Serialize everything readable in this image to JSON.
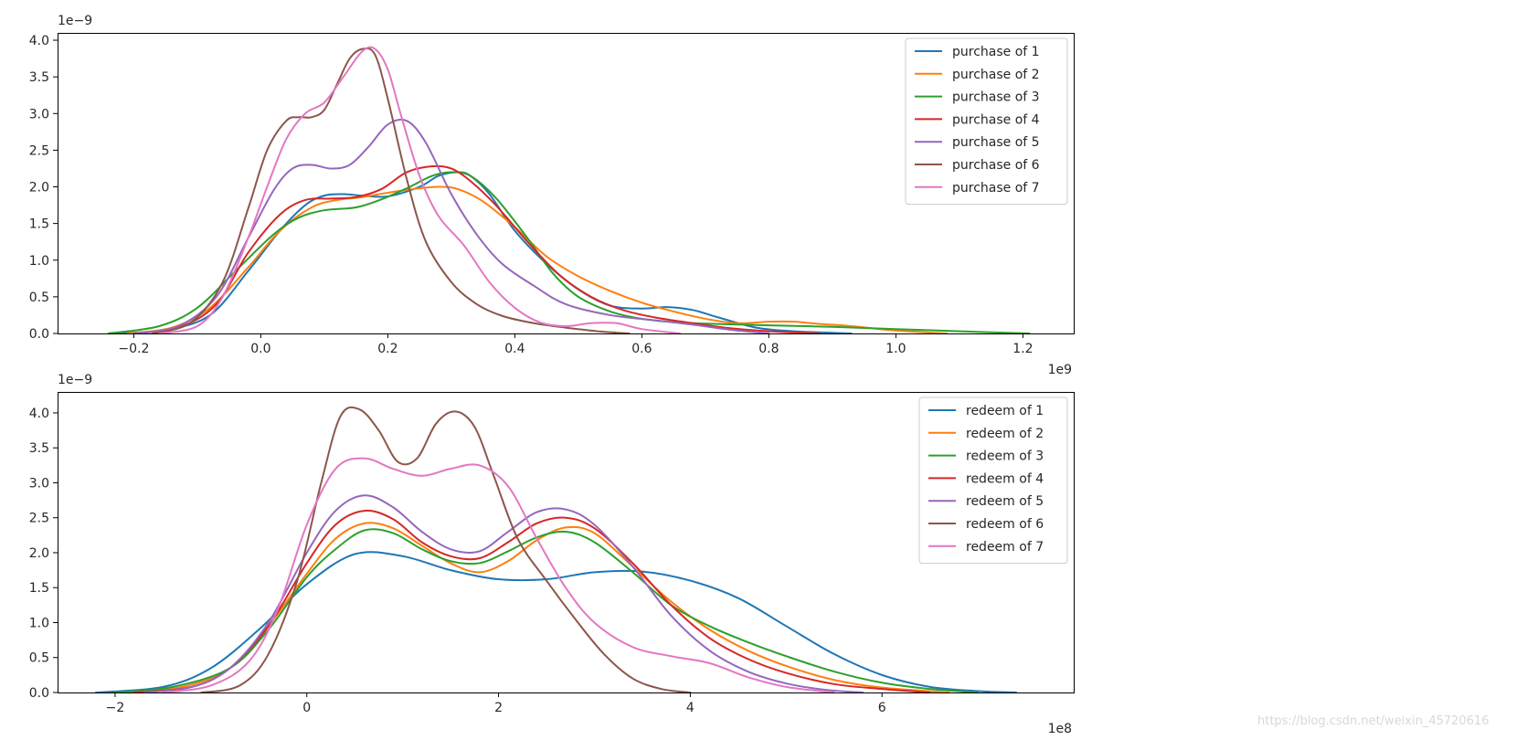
{
  "chart_data": [
    {
      "type": "line",
      "subtype": "kde",
      "title": "",
      "xlabel": "",
      "ylabel": "",
      "x_offset_label": "1e9",
      "y_offset_label": "1e−9",
      "xlim": [
        -0.32,
        1.28
      ],
      "ylim": [
        0,
        4.1
      ],
      "xticks": [
        -0.2,
        0.0,
        0.2,
        0.4,
        0.6,
        0.8,
        1.0,
        1.2
      ],
      "xtick_labels": [
        "−0.2",
        "0.0",
        "0.2",
        "0.4",
        "0.6",
        "0.8",
        "1.0",
        "1.2"
      ],
      "yticks": [
        0.0,
        0.5,
        1.0,
        1.5,
        2.0,
        2.5,
        3.0,
        3.5,
        4.0
      ],
      "ytick_labels": [
        "0.0",
        "0.5",
        "1.0",
        "1.5",
        "2.0",
        "2.5",
        "3.0",
        "3.5",
        "4.0"
      ],
      "grid": false,
      "legend_position": "top-right",
      "series": [
        {
          "name": "purchase of 1",
          "color": "#1f77b4",
          "x": [
            -0.23,
            -0.15,
            -0.08,
            -0.02,
            0.03,
            0.07,
            0.1,
            0.13,
            0.16,
            0.2,
            0.25,
            0.28,
            0.31,
            0.33,
            0.36,
            0.4,
            0.45,
            0.5,
            0.55,
            0.6,
            0.64,
            0.68,
            0.72,
            0.78,
            0.84,
            0.93
          ],
          "y": [
            0,
            0.05,
            0.25,
            0.85,
            1.4,
            1.75,
            1.88,
            1.9,
            1.88,
            1.87,
            2.0,
            2.15,
            2.2,
            2.15,
            1.9,
            1.4,
            0.95,
            0.6,
            0.38,
            0.34,
            0.36,
            0.32,
            0.22,
            0.08,
            0.03,
            0
          ]
        },
        {
          "name": "purchase of 2",
          "color": "#ff7f0e",
          "x": [
            -0.21,
            -0.14,
            -0.08,
            -0.02,
            0.03,
            0.08,
            0.12,
            0.16,
            0.2,
            0.25,
            0.28,
            0.31,
            0.35,
            0.4,
            0.45,
            0.5,
            0.55,
            0.6,
            0.65,
            0.7,
            0.75,
            0.8,
            0.84,
            0.88,
            0.93,
            1.0,
            1.08
          ],
          "y": [
            0,
            0.08,
            0.35,
            0.9,
            1.4,
            1.72,
            1.82,
            1.86,
            1.92,
            1.98,
            2.0,
            1.97,
            1.8,
            1.45,
            1.05,
            0.78,
            0.58,
            0.42,
            0.3,
            0.2,
            0.14,
            0.16,
            0.16,
            0.13,
            0.1,
            0.04,
            0
          ]
        },
        {
          "name": "purchase of 3",
          "color": "#2ca02c",
          "x": [
            -0.24,
            -0.16,
            -0.1,
            -0.04,
            0.02,
            0.06,
            0.1,
            0.15,
            0.19,
            0.23,
            0.27,
            0.3,
            0.33,
            0.37,
            0.42,
            0.46,
            0.5,
            0.55,
            0.6,
            0.66,
            0.72,
            0.8,
            0.9,
            1.0,
            1.1,
            1.21
          ],
          "y": [
            0,
            0.1,
            0.35,
            0.85,
            1.35,
            1.58,
            1.68,
            1.72,
            1.83,
            1.98,
            2.15,
            2.2,
            2.15,
            1.85,
            1.3,
            0.82,
            0.5,
            0.3,
            0.2,
            0.15,
            0.13,
            0.11,
            0.09,
            0.06,
            0.03,
            0
          ]
        },
        {
          "name": "purchase of 4",
          "color": "#d62728",
          "x": [
            -0.2,
            -0.13,
            -0.07,
            -0.02,
            0.03,
            0.07,
            0.11,
            0.15,
            0.19,
            0.23,
            0.27,
            0.3,
            0.33,
            0.37,
            0.42,
            0.47,
            0.52,
            0.57,
            0.62,
            0.68,
            0.73,
            0.8,
            0.88
          ],
          "y": [
            0,
            0.08,
            0.4,
            1.1,
            1.62,
            1.82,
            1.84,
            1.86,
            1.97,
            2.2,
            2.28,
            2.25,
            2.08,
            1.75,
            1.25,
            0.8,
            0.5,
            0.32,
            0.22,
            0.14,
            0.08,
            0.03,
            0
          ]
        },
        {
          "name": "purchase of 5",
          "color": "#9467bd",
          "x": [
            -0.2,
            -0.13,
            -0.07,
            -0.02,
            0.02,
            0.05,
            0.08,
            0.11,
            0.14,
            0.17,
            0.2,
            0.23,
            0.26,
            0.3,
            0.34,
            0.38,
            0.43,
            0.48,
            0.55,
            0.62,
            0.68,
            0.74,
            0.8
          ],
          "y": [
            0,
            0.1,
            0.5,
            1.3,
            1.95,
            2.25,
            2.3,
            2.25,
            2.3,
            2.55,
            2.85,
            2.9,
            2.6,
            1.9,
            1.35,
            0.95,
            0.65,
            0.4,
            0.25,
            0.18,
            0.12,
            0.05,
            0
          ]
        },
        {
          "name": "purchase of 6",
          "color": "#8c564b",
          "x": [
            -0.17,
            -0.11,
            -0.06,
            -0.02,
            0.01,
            0.04,
            0.06,
            0.08,
            0.1,
            0.12,
            0.14,
            0.16,
            0.18,
            0.2,
            0.23,
            0.26,
            0.3,
            0.34,
            0.38,
            0.43,
            0.48,
            0.53,
            0.58
          ],
          "y": [
            0,
            0.15,
            0.7,
            1.7,
            2.5,
            2.9,
            2.95,
            2.95,
            3.05,
            3.4,
            3.75,
            3.88,
            3.8,
            3.2,
            2.1,
            1.25,
            0.7,
            0.4,
            0.24,
            0.14,
            0.08,
            0.03,
            0
          ]
        },
        {
          "name": "purchase of 7",
          "color": "#e377c2",
          "x": [
            -0.16,
            -0.1,
            -0.06,
            -0.02,
            0.01,
            0.04,
            0.07,
            0.1,
            0.13,
            0.16,
            0.18,
            0.2,
            0.22,
            0.25,
            0.28,
            0.32,
            0.36,
            0.4,
            0.44,
            0.48,
            0.52,
            0.56,
            0.6,
            0.66
          ],
          "y": [
            0,
            0.1,
            0.5,
            1.3,
            2.0,
            2.65,
            3.0,
            3.15,
            3.5,
            3.85,
            3.88,
            3.6,
            3.0,
            2.15,
            1.6,
            1.2,
            0.7,
            0.35,
            0.15,
            0.1,
            0.14,
            0.14,
            0.06,
            0
          ]
        }
      ]
    },
    {
      "type": "line",
      "subtype": "kde",
      "title": "",
      "xlabel": "",
      "ylabel": "",
      "x_offset_label": "1e8",
      "y_offset_label": "1e−9",
      "xlim": [
        -2.6,
        8.0
      ],
      "ylim": [
        0,
        4.3
      ],
      "xticks": [
        -2,
        0,
        2,
        4,
        6
      ],
      "xtick_labels": [
        "−2",
        "0",
        "2",
        "4",
        "6"
      ],
      "yticks": [
        0.0,
        0.5,
        1.0,
        1.5,
        2.0,
        2.5,
        3.0,
        3.5,
        4.0
      ],
      "ytick_labels": [
        "0.0",
        "0.5",
        "1.0",
        "1.5",
        "2.0",
        "2.5",
        "3.0",
        "3.5",
        "4.0"
      ],
      "grid": false,
      "legend_position": "top-right",
      "series": [
        {
          "name": "redeem of 1",
          "color": "#1f77b4",
          "x": [
            -2.2,
            -1.5,
            -1.0,
            -0.5,
            0.0,
            0.5,
            1.0,
            1.5,
            2.0,
            2.5,
            3.0,
            3.5,
            4.0,
            4.5,
            5.0,
            5.5,
            6.0,
            6.5,
            7.0,
            7.4
          ],
          "y": [
            0,
            0.08,
            0.35,
            0.9,
            1.55,
            1.98,
            1.95,
            1.75,
            1.62,
            1.62,
            1.72,
            1.73,
            1.6,
            1.35,
            0.95,
            0.55,
            0.25,
            0.08,
            0.02,
            0
          ]
        },
        {
          "name": "redeem of 2",
          "color": "#ff7f0e",
          "x": [
            -1.9,
            -1.3,
            -0.8,
            -0.4,
            0.0,
            0.3,
            0.6,
            0.9,
            1.2,
            1.5,
            1.8,
            2.1,
            2.4,
            2.7,
            3.0,
            3.4,
            3.8,
            4.2,
            4.6,
            5.0,
            5.5,
            6.0,
            6.7
          ],
          "y": [
            0,
            0.08,
            0.35,
            0.95,
            1.7,
            2.2,
            2.42,
            2.35,
            2.1,
            1.85,
            1.72,
            1.88,
            2.18,
            2.36,
            2.28,
            1.8,
            1.3,
            0.9,
            0.6,
            0.38,
            0.18,
            0.07,
            0
          ]
        },
        {
          "name": "redeem of 3",
          "color": "#2ca02c",
          "x": [
            -2.0,
            -1.4,
            -0.8,
            -0.4,
            0.0,
            0.3,
            0.6,
            0.9,
            1.2,
            1.5,
            1.8,
            2.1,
            2.4,
            2.7,
            3.0,
            3.4,
            3.8,
            4.2,
            4.6,
            5.0,
            5.5,
            6.0,
            6.5,
            7.0
          ],
          "y": [
            0,
            0.08,
            0.35,
            0.9,
            1.65,
            2.05,
            2.32,
            2.28,
            2.05,
            1.88,
            1.85,
            2.02,
            2.22,
            2.3,
            2.15,
            1.72,
            1.25,
            0.95,
            0.72,
            0.52,
            0.3,
            0.14,
            0.05,
            0
          ]
        },
        {
          "name": "redeem of 4",
          "color": "#d62728",
          "x": [
            -1.8,
            -1.2,
            -0.8,
            -0.4,
            0.0,
            0.3,
            0.6,
            0.9,
            1.2,
            1.5,
            1.8,
            2.1,
            2.4,
            2.7,
            3.0,
            3.4,
            3.8,
            4.2,
            4.6,
            5.0,
            5.5,
            6.0,
            6.5
          ],
          "y": [
            0,
            0.08,
            0.35,
            0.95,
            1.85,
            2.4,
            2.6,
            2.48,
            2.15,
            1.95,
            1.92,
            2.15,
            2.42,
            2.5,
            2.35,
            1.85,
            1.25,
            0.78,
            0.48,
            0.28,
            0.12,
            0.05,
            0
          ]
        },
        {
          "name": "redeem of 5",
          "color": "#9467bd",
          "x": [
            -1.7,
            -1.2,
            -0.8,
            -0.4,
            0.0,
            0.3,
            0.6,
            0.9,
            1.2,
            1.5,
            1.8,
            2.1,
            2.4,
            2.7,
            3.0,
            3.4,
            3.8,
            4.2,
            4.6,
            5.0,
            5.4,
            5.8
          ],
          "y": [
            0,
            0.08,
            0.35,
            1.0,
            2.0,
            2.6,
            2.82,
            2.65,
            2.3,
            2.05,
            2.02,
            2.3,
            2.58,
            2.62,
            2.4,
            1.8,
            1.1,
            0.6,
            0.3,
            0.13,
            0.04,
            0
          ]
        },
        {
          "name": "redeem of 6",
          "color": "#8c564b",
          "x": [
            -1.1,
            -0.7,
            -0.4,
            -0.1,
            0.15,
            0.35,
            0.55,
            0.75,
            0.95,
            1.15,
            1.35,
            1.55,
            1.75,
            1.95,
            2.2,
            2.5,
            2.8,
            3.1,
            3.4,
            3.7,
            4.0
          ],
          "y": [
            0,
            0.1,
            0.55,
            1.6,
            3.0,
            3.95,
            4.05,
            3.75,
            3.3,
            3.35,
            3.85,
            4.02,
            3.8,
            3.1,
            2.2,
            1.6,
            1.05,
            0.55,
            0.2,
            0.05,
            0
          ]
        },
        {
          "name": "redeem of 7",
          "color": "#e377c2",
          "x": [
            -1.5,
            -1.0,
            -0.6,
            -0.3,
            0.0,
            0.3,
            0.6,
            0.9,
            1.2,
            1.5,
            1.8,
            2.1,
            2.4,
            2.7,
            3.0,
            3.4,
            3.8,
            4.2,
            4.6,
            5.0,
            5.5
          ],
          "y": [
            0,
            0.1,
            0.45,
            1.2,
            2.4,
            3.2,
            3.35,
            3.2,
            3.1,
            3.2,
            3.25,
            2.95,
            2.2,
            1.5,
            1.0,
            0.65,
            0.52,
            0.42,
            0.22,
            0.08,
            0
          ]
        }
      ]
    }
  ],
  "watermark": "https://blog.csdn.net/weixin_45720616"
}
